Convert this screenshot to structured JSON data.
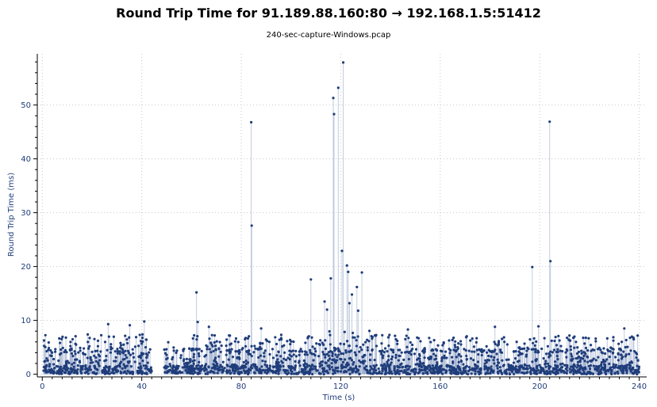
{
  "chart_data": {
    "type": "scatter",
    "title": "Round Trip Time for 91.189.88.160:80 → 192.168.1.5:51412",
    "subtitle": "240-sec-capture-Windows.pcap",
    "xlabel": "Time (s)",
    "ylabel": "Round Trip Time (ms)",
    "xlim": [
      -2,
      243
    ],
    "ylim": [
      -0.5,
      59.5
    ],
    "x_ticks": [
      0,
      40,
      80,
      120,
      160,
      200,
      240
    ],
    "y_ticks": [
      0,
      10,
      20,
      30,
      40,
      50
    ],
    "grid": true,
    "series": [
      {
        "color": "#1f3d7a",
        "drop_lines": true,
        "spikes": [
          {
            "x": 26.5,
            "y": 9.3
          },
          {
            "x": 35.2,
            "y": 9.1
          },
          {
            "x": 41.0,
            "y": 9.8
          },
          {
            "x": 62.0,
            "y": 15.2
          },
          {
            "x": 62.5,
            "y": 9.7
          },
          {
            "x": 67.0,
            "y": 8.8
          },
          {
            "x": 84.0,
            "y": 46.8
          },
          {
            "x": 84.2,
            "y": 27.6
          },
          {
            "x": 88.0,
            "y": 8.5
          },
          {
            "x": 108.0,
            "y": 17.6
          },
          {
            "x": 113.5,
            "y": 13.5
          },
          {
            "x": 114.5,
            "y": 12.0
          },
          {
            "x": 116.0,
            "y": 17.8
          },
          {
            "x": 117.0,
            "y": 51.3
          },
          {
            "x": 117.3,
            "y": 48.3
          },
          {
            "x": 119.0,
            "y": 53.2
          },
          {
            "x": 120.5,
            "y": 22.9
          },
          {
            "x": 121.0,
            "y": 57.9
          },
          {
            "x": 122.5,
            "y": 20.2
          },
          {
            "x": 123.0,
            "y": 19.0
          },
          {
            "x": 123.5,
            "y": 13.2
          },
          {
            "x": 124.5,
            "y": 14.8
          },
          {
            "x": 126.5,
            "y": 16.2
          },
          {
            "x": 127.0,
            "y": 11.8
          },
          {
            "x": 128.5,
            "y": 18.9
          },
          {
            "x": 147.0,
            "y": 8.3
          },
          {
            "x": 182.0,
            "y": 8.8
          },
          {
            "x": 197.0,
            "y": 19.9
          },
          {
            "x": 199.5,
            "y": 8.9
          },
          {
            "x": 204.0,
            "y": 46.9
          },
          {
            "x": 204.3,
            "y": 21.0
          },
          {
            "x": 234.0,
            "y": 8.5
          }
        ]
      }
    ]
  }
}
